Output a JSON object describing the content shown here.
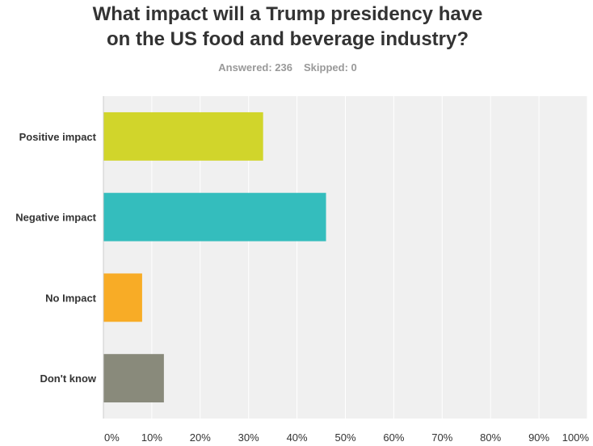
{
  "chart_data": {
    "type": "bar",
    "orientation": "horizontal",
    "title_lines": [
      "What impact will a Trump presidency have",
      "on the US food and beverage industry?"
    ],
    "answered": "Answered: 236",
    "skipped": "Skipped: 0",
    "categories": [
      "Positive impact",
      "Negative impact",
      "No Impact",
      "Don't know"
    ],
    "values": [
      33,
      46,
      8,
      12.5
    ],
    "colors": [
      "#d1d52b",
      "#34bdbd",
      "#f8ac26",
      "#898a7b"
    ],
    "xlim": [
      0,
      100
    ],
    "x_ticks": [
      "0%",
      "10%",
      "20%",
      "30%",
      "40%",
      "50%",
      "60%",
      "70%",
      "80%",
      "90%",
      "100%"
    ],
    "grid": true,
    "plot_background": "#f0f0f0"
  }
}
